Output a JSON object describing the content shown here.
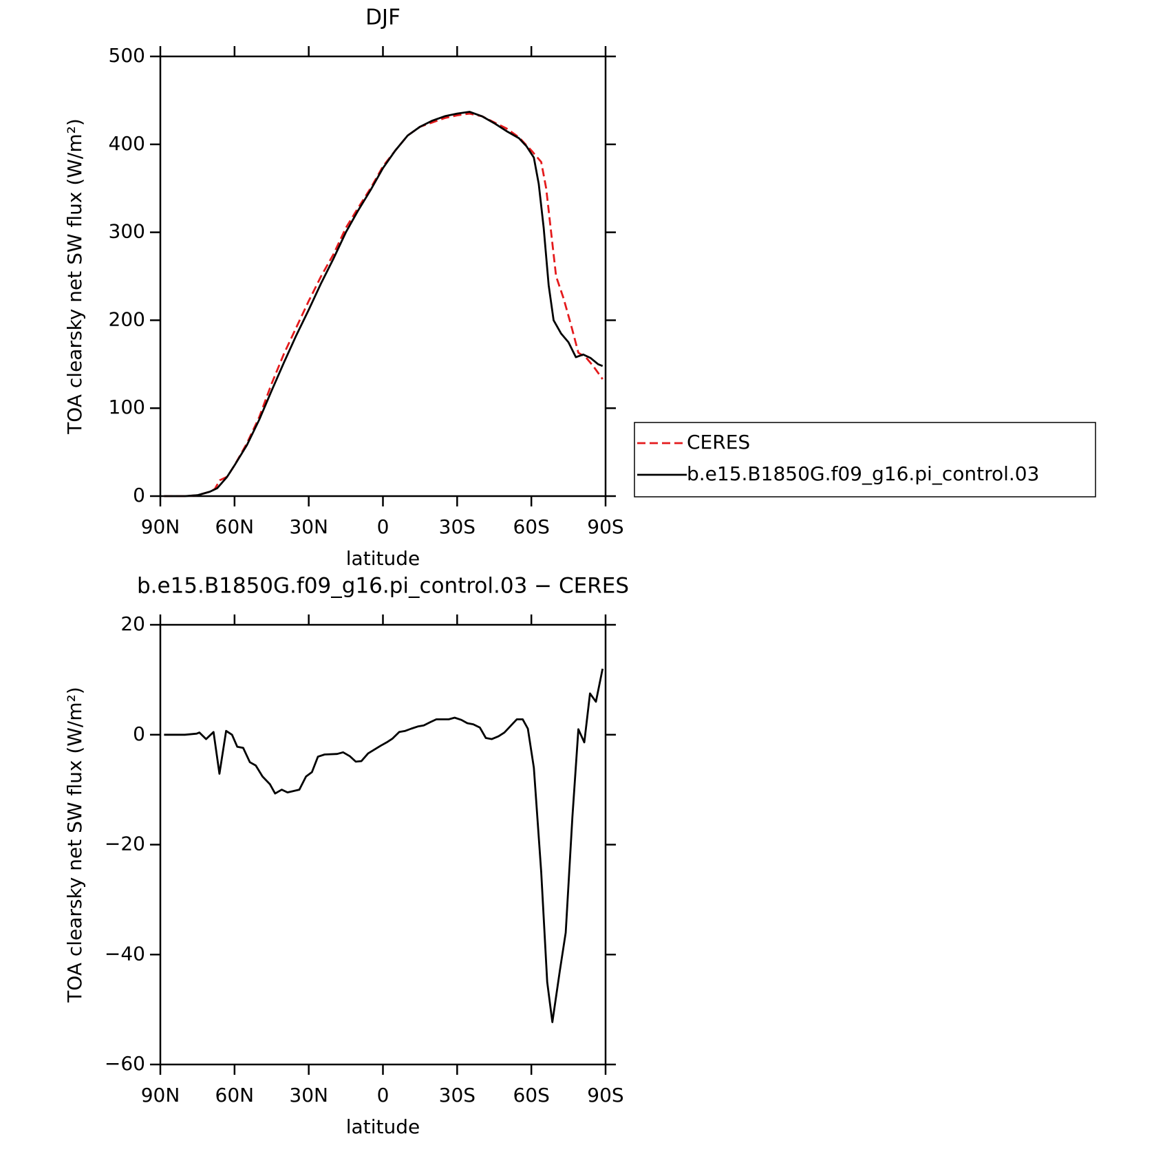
{
  "chart_data": [
    {
      "type": "line",
      "title": "DJF",
      "xlabel": "latitude",
      "ylabel": "TOA clearsky net SW flux (W/m²)",
      "xlim": [
        90,
        -90
      ],
      "xticks": [
        {
          "value": 90,
          "label": "90N"
        },
        {
          "value": 60,
          "label": "60N"
        },
        {
          "value": 30,
          "label": "30N"
        },
        0,
        {
          "value": -30,
          "label": "30S"
        },
        {
          "value": -60,
          "label": "60S"
        },
        {
          "value": -90,
          "label": "90S"
        }
      ],
      "ylim": [
        0,
        500
      ],
      "yticks": [
        0,
        100,
        200,
        300,
        400,
        500
      ],
      "legend": "right",
      "series": [
        {
          "name": "CERES",
          "color": "#e41a1c",
          "dash": true,
          "x": [
            88.5,
            80,
            75,
            70,
            68,
            66,
            63,
            60,
            55,
            50,
            45,
            40,
            35,
            30,
            25,
            20,
            15,
            10,
            5,
            0,
            -5,
            -10,
            -15,
            -20,
            -25,
            -30,
            -35,
            -40,
            -45,
            -50,
            -55,
            -60,
            -64,
            -66,
            -68,
            -70,
            -73,
            -76,
            -79,
            -82,
            -85,
            -88.8
          ],
          "values": [
            0,
            0,
            1,
            5,
            8,
            18,
            22,
            35,
            60,
            90,
            128,
            162,
            192,
            222,
            250,
            275,
            305,
            328,
            350,
            375,
            393,
            410,
            420,
            425,
            430,
            433,
            435,
            432,
            425,
            418,
            408,
            393,
            380,
            350,
            300,
            250,
            225,
            195,
            163,
            158,
            148,
            133
          ]
        },
        {
          "name": "b.e15.B1850G.f09_g16.pi_control.03",
          "color": "#000000",
          "dash": false,
          "x": [
            88.5,
            80,
            75,
            70,
            67,
            63,
            60,
            55,
            50,
            45,
            40,
            35,
            30,
            25,
            20,
            15,
            10,
            5,
            0,
            -5,
            -10,
            -15,
            -20,
            -25,
            -30,
            -35,
            -40,
            -45,
            -50,
            -55,
            -58,
            -61,
            -63,
            -65,
            -67,
            -69,
            -72,
            -75,
            -78,
            -81,
            -84,
            -87,
            -88.8
          ],
          "values": [
            0,
            0,
            1,
            5,
            9,
            22,
            35,
            58,
            87,
            120,
            152,
            183,
            212,
            242,
            270,
            300,
            325,
            348,
            373,
            393,
            410,
            420,
            427,
            432,
            435,
            437,
            432,
            424,
            415,
            407,
            398,
            385,
            355,
            305,
            240,
            200,
            185,
            175,
            158,
            161,
            157,
            150,
            148
          ]
        }
      ]
    },
    {
      "type": "line",
      "title": "b.e15.B1850G.f09_g16.pi_control.03 − CERES",
      "xlabel": "latitude",
      "ylabel": "TOA clearsky net SW flux (W/m²)",
      "xlim": [
        90,
        -90
      ],
      "xticks": [
        {
          "value": 90,
          "label": "90N"
        },
        {
          "value": 60,
          "label": "60N"
        },
        {
          "value": 30,
          "label": "30N"
        },
        0,
        {
          "value": -30,
          "label": "30S"
        },
        {
          "value": -60,
          "label": "60S"
        },
        {
          "value": -90,
          "label": "90S"
        }
      ],
      "ylim": [
        -60,
        20
      ],
      "yticks": [
        20,
        0,
        {
          "value": -20,
          "label": "−20"
        },
        {
          "value": -40,
          "label": "−40"
        },
        {
          "value": -60,
          "label": "−60"
        }
      ],
      "series": [
        {
          "color": "#000000",
          "dash": false,
          "x": [
            88.5,
            80.1,
            75.3,
            74.2,
            71.5,
            68.5,
            66.1,
            63.4,
            61,
            58.9,
            56.5,
            53.8,
            51.4,
            48.7,
            45.7,
            43.6,
            40.9,
            38.6,
            33.8,
            31.1,
            28.7,
            26.3,
            23.6,
            18.5,
            16.1,
            13.4,
            11,
            8.7,
            6,
            0.9,
            -1.5,
            -3.9,
            -6.6,
            -9,
            -11.4,
            -14.1,
            -16.5,
            -19.2,
            -21.6,
            -26.6,
            -29,
            -31.7,
            -34.1,
            -36.5,
            -39.2,
            -41.6,
            -44,
            -46.7,
            -49.1,
            -54.1,
            -56.5,
            -58.6,
            -61,
            -64,
            -66.4,
            -68.5,
            -71.5,
            -73.9,
            -76.6,
            -79,
            -81.4,
            -83.7,
            -86.1,
            -88.8
          ],
          "values": [
            0,
            0,
            0.2,
            0.4,
            -0.8,
            0.5,
            -7.1,
            0.7,
            0,
            -2.2,
            -2.4,
            -5,
            -5.6,
            -7.6,
            -9,
            -10.7,
            -10,
            -10.5,
            -10,
            -7.6,
            -6.8,
            -4,
            -3.6,
            -3.5,
            -3.2,
            -3.9,
            -4.9,
            -4.8,
            -3.4,
            -2,
            -1.4,
            -0.7,
            0.5,
            0.7,
            1.1,
            1.5,
            1.7,
            2.3,
            2.8,
            2.8,
            3.1,
            2.7,
            2.1,
            1.9,
            1.3,
            -0.6,
            -0.8,
            -0.3,
            0.4,
            2.8,
            2.8,
            1.1,
            -6,
            -25,
            -45,
            -52.3,
            -43,
            -36,
            -15,
            1,
            -1.4,
            7.5,
            6,
            12
          ]
        }
      ]
    }
  ]
}
